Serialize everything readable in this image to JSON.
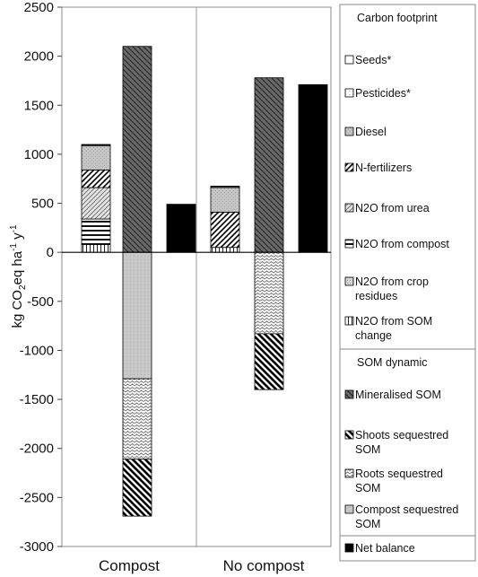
{
  "chart_data": {
    "type": "bar",
    "subtype": "stacked",
    "categories": [
      "Compost",
      "No compost"
    ],
    "ylabel": {
      "main": "kg CO",
      "sub": "2",
      "mid": "eq ha",
      "sup1": "-1",
      "mid2": " y",
      "sup2": "-1"
    },
    "ylim": [
      -3000,
      2500
    ],
    "yticks": [
      "2500",
      "2000",
      "1500",
      "1000",
      "500",
      "0",
      "-500",
      "-1000",
      "-1500",
      "-2000",
      "-2500",
      "-3000"
    ],
    "ytick_values": [
      2500,
      2000,
      1500,
      1000,
      500,
      0,
      -500,
      -1000,
      -1500,
      -2000,
      -2500,
      -3000
    ],
    "grid": false,
    "legend_placement": "right",
    "legend": {
      "carbon_header": "Carbon footprint",
      "som_header": "SOM dynamic",
      "carbon_items": [
        {
          "lines": [
            "Seeds*"
          ],
          "pattern": "seeds"
        },
        {
          "lines": [
            "Pesticides*"
          ],
          "pattern": "pesticides"
        },
        {
          "lines": [
            "Diesel"
          ],
          "pattern": "diesel"
        },
        {
          "lines": [
            "N-fertilizers"
          ],
          "pattern": "nfert"
        },
        {
          "lines": [
            "N2O from urea"
          ],
          "pattern": "urea"
        },
        {
          "lines": [
            "N2O from compost"
          ],
          "pattern": "n2ocompost"
        },
        {
          "lines": [
            "N2O from crop",
            "residues"
          ],
          "pattern": "crop"
        },
        {
          "lines": [
            "N2O from SOM",
            "change"
          ],
          "pattern": "somchange"
        }
      ],
      "som_items": [
        {
          "lines": [
            "Mineralised SOM"
          ],
          "pattern": "mineral"
        },
        {
          "lines": [
            "Shoots sequestred",
            "SOM"
          ],
          "pattern": "shoots"
        },
        {
          "lines": [
            "Roots sequestred",
            "SOM"
          ],
          "pattern": "roots"
        },
        {
          "lines": [
            "Compost sequestred",
            "SOM"
          ],
          "pattern": "compostseq"
        }
      ],
      "net_item": {
        "lines": [
          "Net balance"
        ],
        "pattern": "net"
      }
    },
    "series": {
      "carbon_footprint": [
        {
          "name": "N2O from SOM change",
          "pattern": "somchange",
          "values": [
            80,
            50
          ]
        },
        {
          "name": "N2O from crop residues",
          "pattern": "crop",
          "values": [
            0,
            0
          ]
        },
        {
          "name": "N2O from compost",
          "pattern": "n2ocompost",
          "values": [
            260,
            0
          ]
        },
        {
          "name": "N2O from urea",
          "pattern": "urea",
          "values": [
            320,
            0
          ]
        },
        {
          "name": "N-fertilizers",
          "pattern": "nfert",
          "values": [
            180,
            360
          ]
        },
        {
          "name": "Diesel",
          "pattern": "diesel",
          "values": [
            245,
            250
          ]
        },
        {
          "name": "Pesticides*",
          "pattern": "pesticides",
          "values": [
            10,
            10
          ]
        },
        {
          "name": "Seeds*",
          "pattern": "seeds",
          "values": [
            5,
            5
          ]
        }
      ],
      "mineralised_som": {
        "pattern": "mineral",
        "values": [
          2100,
          1780
        ]
      },
      "som_sequestered": [
        {
          "name": "Compost sequestred SOM",
          "pattern": "compostseq",
          "values": [
            -1290,
            0
          ]
        },
        {
          "name": "Roots sequestred SOM",
          "pattern": "roots",
          "values": [
            -820,
            -830
          ]
        },
        {
          "name": "Shoots sequestred SOM",
          "pattern": "shoots",
          "values": [
            -580,
            -570
          ]
        }
      ],
      "net_balance": {
        "pattern": "net",
        "values": [
          490,
          1710
        ]
      }
    }
  }
}
